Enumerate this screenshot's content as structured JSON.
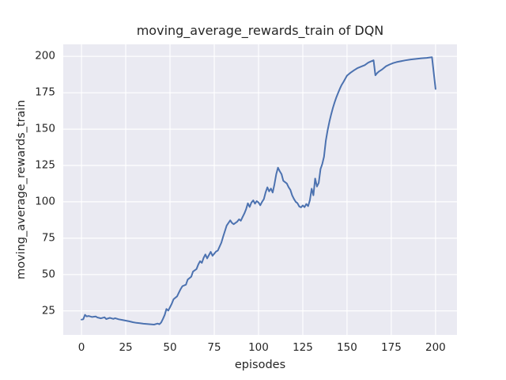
{
  "chart_data": {
    "type": "line",
    "title": "moving_average_rewards_train of DQN",
    "xlabel": "episodes",
    "ylabel": "moving_average_rewards_train",
    "xticks": [
      0,
      25,
      50,
      75,
      100,
      125,
      150,
      175,
      200
    ],
    "yticks": [
      25,
      50,
      75,
      100,
      125,
      150,
      175,
      200
    ],
    "xlim": [
      -10.3,
      212.1
    ],
    "ylim": [
      8.5,
      208.3
    ],
    "grid": true,
    "legend": false,
    "colors": {
      "line": "#4c72b0",
      "axes_background": "#eaeaf2",
      "grid": "#ffffff",
      "text": "#262626",
      "figure_background": "#ffffff"
    },
    "series": [
      {
        "name": "DQN",
        "x": [
          0,
          1,
          2,
          3,
          4,
          6,
          8,
          9,
          11,
          13,
          14,
          16,
          18,
          19,
          21,
          23,
          25,
          27,
          29,
          31,
          33,
          35,
          37,
          39,
          41,
          43,
          44,
          45,
          46,
          47,
          48,
          49,
          50,
          51,
          52,
          54,
          55,
          56,
          57,
          59,
          60,
          62,
          63,
          65,
          66,
          67,
          68,
          69,
          70,
          71,
          73,
          74,
          76,
          77,
          79,
          80,
          82,
          84,
          85,
          86,
          88,
          89,
          90,
          91,
          92,
          93,
          94,
          95,
          96,
          97,
          98,
          99,
          100,
          101,
          102,
          103,
          104,
          105,
          106,
          107,
          108,
          109,
          110,
          111,
          112,
          113,
          114,
          116,
          117,
          118,
          119,
          120,
          121,
          122,
          123,
          124,
          125,
          126,
          127,
          128,
          129,
          130,
          131,
          132,
          133,
          134,
          135,
          136,
          137,
          138,
          139,
          140,
          141,
          142,
          143,
          144,
          145,
          146,
          147,
          148,
          150,
          152,
          154,
          156,
          158,
          160,
          162,
          164,
          165,
          166,
          167,
          168,
          170,
          172,
          174,
          176,
          178,
          180,
          183,
          186,
          189,
          192,
          195,
          197,
          198,
          200
        ],
        "y": [
          19.0,
          19.2,
          22.3,
          21.2,
          21.5,
          20.8,
          21.2,
          20.5,
          19.9,
          20.6,
          19.4,
          20.2,
          19.5,
          20.0,
          19.2,
          18.8,
          18.3,
          17.8,
          17.2,
          16.8,
          16.5,
          16.2,
          16.0,
          15.8,
          15.6,
          16.3,
          15.8,
          17.0,
          19.5,
          22.2,
          26.3,
          25.2,
          27.5,
          30.0,
          33.0,
          35.0,
          37.5,
          40.0,
          42.0,
          43.0,
          46.5,
          48.5,
          52.0,
          53.8,
          57.0,
          59.2,
          58.0,
          61.5,
          63.8,
          61.1,
          65.6,
          62.9,
          65.8,
          66.5,
          71.9,
          76.0,
          83.7,
          87.3,
          85.5,
          84.6,
          86.4,
          88.0,
          87.0,
          89.5,
          92.0,
          95.0,
          99.0,
          96.5,
          99.5,
          101.0,
          98.7,
          100.5,
          99.5,
          97.6,
          100.0,
          101.8,
          106.4,
          110.0,
          107.2,
          109.1,
          106.4,
          112.0,
          119.0,
          123.5,
          121.0,
          119.0,
          114.5,
          112.6,
          110.0,
          108.2,
          104.5,
          102.0,
          100.0,
          99.1,
          96.8,
          96.2,
          97.5,
          96.3,
          98.5,
          97.0,
          101.0,
          109.0,
          104.5,
          116.0,
          110.5,
          113.0,
          122.5,
          126.0,
          131.0,
          142.0,
          149.0,
          155.0,
          160.0,
          164.5,
          168.5,
          172.0,
          175.0,
          178.0,
          180.5,
          182.5,
          186.8,
          188.8,
          190.5,
          192.0,
          193.0,
          194.0,
          195.7,
          196.8,
          197.3,
          187.0,
          188.5,
          189.6,
          191.2,
          193.2,
          194.4,
          195.4,
          196.1,
          196.6,
          197.3,
          197.9,
          198.3,
          198.7,
          199.0,
          199.3,
          199.4,
          177.6
        ]
      }
    ]
  }
}
